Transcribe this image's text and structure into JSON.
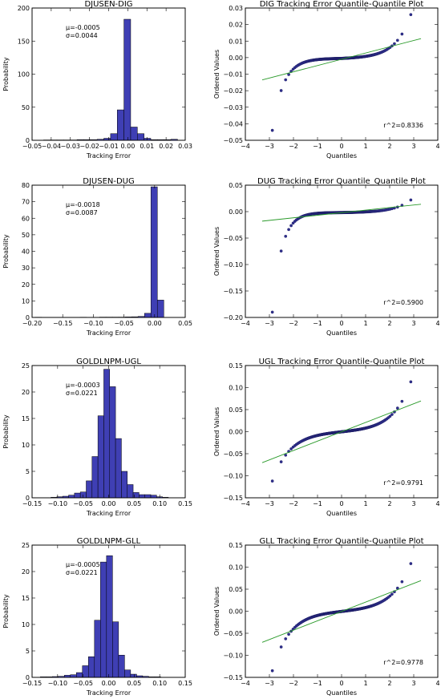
{
  "figure": {
    "background": "#ffffff",
    "bar_color": "#3f3fb4",
    "marker_color": "#2e2e8c",
    "fit_color": "#2a9a2a"
  },
  "chart_data": [
    {
      "type": "bar",
      "title": "DJUSEN-DIG",
      "xlabel": "Tracking Error",
      "ylabel": "Probability",
      "xlim": [
        -0.05,
        0.03
      ],
      "ylim": [
        0,
        200
      ],
      "xticks": [
        -0.05,
        -0.04,
        -0.03,
        -0.02,
        -0.01,
        0.0,
        0.01,
        0.02,
        0.03
      ],
      "xtick_labels": [
        "−0.05",
        "−0.04",
        "−0.03",
        "−0.02",
        "−0.01",
        "0.00",
        "0.01",
        "0.02",
        "0.03"
      ],
      "yticks": [
        0,
        50,
        100,
        150,
        200
      ],
      "ytick_labels": [
        "0",
        "50",
        "100",
        "150",
        "200"
      ],
      "annotation": [
        "μ=-0.0005",
        "σ=0.0044"
      ],
      "bins": [
        {
          "x0": -0.044,
          "x1": -0.0405,
          "y": 0.5
        },
        {
          "x0": -0.0405,
          "x1": -0.037,
          "y": 0.5
        },
        {
          "x0": -0.037,
          "x1": -0.0335,
          "y": 0.5
        },
        {
          "x0": -0.0335,
          "x1": -0.03,
          "y": 0.5
        },
        {
          "x0": -0.03,
          "x1": -0.0265,
          "y": 0.5
        },
        {
          "x0": -0.0265,
          "x1": -0.023,
          "y": 1
        },
        {
          "x0": -0.023,
          "x1": -0.0195,
          "y": 1
        },
        {
          "x0": -0.0195,
          "x1": -0.016,
          "y": 1
        },
        {
          "x0": -0.016,
          "x1": -0.0125,
          "y": 1.5
        },
        {
          "x0": -0.0125,
          "x1": -0.009,
          "y": 3
        },
        {
          "x0": -0.009,
          "x1": -0.0055,
          "y": 10
        },
        {
          "x0": -0.0055,
          "x1": -0.002,
          "y": 46
        },
        {
          "x0": -0.002,
          "x1": 0.0015,
          "y": 183
        },
        {
          "x0": 0.0015,
          "x1": 0.005,
          "y": 20
        },
        {
          "x0": 0.005,
          "x1": 0.0085,
          "y": 10
        },
        {
          "x0": 0.0085,
          "x1": 0.012,
          "y": 3
        },
        {
          "x0": 0.012,
          "x1": 0.0155,
          "y": 1
        },
        {
          "x0": 0.0155,
          "x1": 0.019,
          "y": 1
        },
        {
          "x0": 0.019,
          "x1": 0.0225,
          "y": 1
        },
        {
          "x0": 0.0225,
          "x1": 0.026,
          "y": 1.5
        }
      ]
    },
    {
      "type": "scatter",
      "title": "DIG Tracking Error Quantile-Quantile Plot",
      "xlabel": "Quantiles",
      "ylabel": "Ordered Values",
      "xlim": [
        -4,
        4
      ],
      "ylim": [
        -0.05,
        0.03
      ],
      "xticks": [
        -4,
        -3,
        -2,
        -1,
        0,
        1,
        2,
        3,
        4
      ],
      "xtick_labels": [
        "−4",
        "−3",
        "−2",
        "−1",
        "0",
        "1",
        "2",
        "3",
        "4"
      ],
      "yticks": [
        -0.05,
        -0.04,
        -0.03,
        -0.02,
        -0.01,
        0.0,
        0.01,
        0.02,
        0.03
      ],
      "ytick_labels": [
        "−0.05",
        "−0.04",
        "−0.03",
        "−0.02",
        "−0.01",
        "0.00",
        "0.01",
        "0.02",
        "0.03"
      ],
      "annotation": "r^2=0.8336",
      "qq": {
        "n": 250,
        "mu": -0.0005,
        "slope": 0.004,
        "min": -0.044,
        "max": 0.026,
        "tail_low": 2.2,
        "tail_high": 1.6
      },
      "fit": {
        "x": [
          -3.3,
          3.3
        ],
        "y": [
          -0.0135,
          0.0115
        ]
      }
    },
    {
      "type": "bar",
      "title": "DJUSEN-DUG",
      "xlabel": "Tracking Error",
      "ylabel": "Probability",
      "xlim": [
        -0.2,
        0.05
      ],
      "ylim": [
        0,
        80
      ],
      "xticks": [
        -0.2,
        -0.15,
        -0.1,
        -0.05,
        0.0,
        0.05
      ],
      "xtick_labels": [
        "−0.20",
        "−0.15",
        "−0.10",
        "−0.05",
        "0.00",
        "0.05"
      ],
      "yticks": [
        0,
        10,
        20,
        30,
        40,
        50,
        60,
        70,
        80
      ],
      "ytick_labels": [
        "0",
        "10",
        "20",
        "30",
        "40",
        "50",
        "60",
        "70",
        "80"
      ],
      "annotation": [
        "μ=-0.0018",
        "σ=0.0087"
      ],
      "bins": [
        {
          "x0": -0.195,
          "x1": -0.1845,
          "y": 0.15
        },
        {
          "x0": -0.1845,
          "x1": -0.174,
          "y": 0.1
        },
        {
          "x0": -0.174,
          "x1": -0.1635,
          "y": 0.1
        },
        {
          "x0": -0.1635,
          "x1": -0.153,
          "y": 0.1
        },
        {
          "x0": -0.153,
          "x1": -0.1425,
          "y": 0.1
        },
        {
          "x0": -0.1425,
          "x1": -0.132,
          "y": 0.1
        },
        {
          "x0": -0.132,
          "x1": -0.1215,
          "y": 0.1
        },
        {
          "x0": -0.1215,
          "x1": -0.111,
          "y": 0.15
        },
        {
          "x0": -0.111,
          "x1": -0.1005,
          "y": 0.1
        },
        {
          "x0": -0.1005,
          "x1": -0.09,
          "y": 0.1
        },
        {
          "x0": -0.09,
          "x1": -0.0795,
          "y": 0.2
        },
        {
          "x0": -0.0795,
          "x1": -0.069,
          "y": 0.2
        },
        {
          "x0": -0.069,
          "x1": -0.0585,
          "y": 0.2
        },
        {
          "x0": -0.0585,
          "x1": -0.048,
          "y": 0.2
        },
        {
          "x0": -0.048,
          "x1": -0.0375,
          "y": 0.3
        },
        {
          "x0": -0.0375,
          "x1": -0.027,
          "y": 0.4
        },
        {
          "x0": -0.027,
          "x1": -0.0165,
          "y": 0.6
        },
        {
          "x0": -0.0165,
          "x1": -0.006,
          "y": 2.5
        },
        {
          "x0": -0.006,
          "x1": 0.0045,
          "y": 79
        },
        {
          "x0": 0.0045,
          "x1": 0.015,
          "y": 10.5
        }
      ]
    },
    {
      "type": "scatter",
      "title": "DUG Tracking Error Quantile_Quantile Plot",
      "xlabel": "Quantiles",
      "ylabel": "Ordered Values",
      "xlim": [
        -4,
        4
      ],
      "ylim": [
        -0.2,
        0.05
      ],
      "xticks": [
        -4,
        -3,
        -2,
        -1,
        0,
        1,
        2,
        3,
        4
      ],
      "xtick_labels": [
        "−4",
        "−3",
        "−2",
        "−1",
        "0",
        "1",
        "2",
        "3",
        "4"
      ],
      "yticks": [
        -0.2,
        -0.15,
        -0.1,
        -0.05,
        0.0,
        0.05
      ],
      "ytick_labels": [
        "−0.20",
        "−0.15",
        "−0.10",
        "−0.05",
        "0.00",
        "0.05"
      ],
      "annotation": "r^2=0.5900",
      "qq": {
        "n": 250,
        "mu": -0.0018,
        "slope": 0.004,
        "min": -0.19,
        "max": 0.022,
        "tail_low": 2.6,
        "tail_high": 1.5
      },
      "fit": {
        "x": [
          -3.3,
          3.3
        ],
        "y": [
          -0.018,
          0.014
        ]
      }
    },
    {
      "type": "bar",
      "title": "GOLDLNPM-UGL",
      "xlabel": "Tracking Error",
      "ylabel": "Probability",
      "xlim": [
        -0.15,
        0.15
      ],
      "ylim": [
        0,
        25
      ],
      "xticks": [
        -0.15,
        -0.1,
        -0.05,
        0.0,
        0.05,
        0.1,
        0.15
      ],
      "xtick_labels": [
        "−0.15",
        "−0.10",
        "−0.05",
        "0.00",
        "0.05",
        "0.10",
        "0.15"
      ],
      "yticks": [
        0,
        5,
        10,
        15,
        20,
        25
      ],
      "ytick_labels": [
        "0",
        "5",
        "10",
        "15",
        "20",
        "25"
      ],
      "annotation": [
        "μ=-0.0003",
        "σ=0.0221"
      ],
      "bins": [
        {
          "x0": -0.113,
          "x1": -0.1015,
          "y": 0.1
        },
        {
          "x0": -0.1015,
          "x1": -0.09,
          "y": 0.2
        },
        {
          "x0": -0.09,
          "x1": -0.0785,
          "y": 0.3
        },
        {
          "x0": -0.0785,
          "x1": -0.067,
          "y": 0.5
        },
        {
          "x0": -0.067,
          "x1": -0.0555,
          "y": 0.9
        },
        {
          "x0": -0.0555,
          "x1": -0.044,
          "y": 1.1
        },
        {
          "x0": -0.044,
          "x1": -0.0325,
          "y": 3.2
        },
        {
          "x0": -0.0325,
          "x1": -0.021,
          "y": 7.8
        },
        {
          "x0": -0.021,
          "x1": -0.0095,
          "y": 15.5
        },
        {
          "x0": -0.0095,
          "x1": 0.002,
          "y": 24.3
        },
        {
          "x0": 0.002,
          "x1": 0.0135,
          "y": 21
        },
        {
          "x0": 0.0135,
          "x1": 0.025,
          "y": 11.2
        },
        {
          "x0": 0.025,
          "x1": 0.0365,
          "y": 5
        },
        {
          "x0": 0.0365,
          "x1": 0.048,
          "y": 2.5
        },
        {
          "x0": 0.048,
          "x1": 0.0595,
          "y": 1
        },
        {
          "x0": 0.0595,
          "x1": 0.071,
          "y": 0.6
        },
        {
          "x0": 0.071,
          "x1": 0.0825,
          "y": 0.6
        },
        {
          "x0": 0.0825,
          "x1": 0.094,
          "y": 0.5
        },
        {
          "x0": 0.094,
          "x1": 0.1055,
          "y": 0.2
        },
        {
          "x0": 0.1055,
          "x1": 0.117,
          "y": 0.1
        }
      ]
    },
    {
      "type": "scatter",
      "title": "UGL Tracking Error Quantile-Quantile Plot",
      "xlabel": "Quantiles",
      "ylabel": "Ordered Values",
      "xlim": [
        -4,
        4
      ],
      "ylim": [
        -0.15,
        0.15
      ],
      "xticks": [
        -4,
        -3,
        -2,
        -1,
        0,
        1,
        2,
        3,
        4
      ],
      "xtick_labels": [
        "−4",
        "−3",
        "−2",
        "−1",
        "0",
        "1",
        "2",
        "3",
        "4"
      ],
      "yticks": [
        -0.15,
        -0.1,
        -0.05,
        0.0,
        0.05,
        0.1,
        0.15
      ],
      "ytick_labels": [
        "−0.15",
        "−0.10",
        "−0.05",
        "0.00",
        "0.05",
        "0.10",
        "0.15"
      ],
      "annotation": "r^2=0.9791",
      "qq": {
        "n": 250,
        "mu": -0.0003,
        "slope": 0.019,
        "min": -0.112,
        "max": 0.113,
        "tail_low": 1.35,
        "tail_high": 1.35
      },
      "fit": {
        "x": [
          -3.3,
          3.3
        ],
        "y": [
          -0.0703,
          0.0697
        ]
      }
    },
    {
      "type": "bar",
      "title": "GOLDLNPM-GLL",
      "xlabel": "Tracking Error",
      "ylabel": "Probability",
      "xlim": [
        -0.15,
        0.15
      ],
      "ylim": [
        0,
        25
      ],
      "xticks": [
        -0.15,
        -0.1,
        -0.05,
        0.0,
        0.05,
        0.1,
        0.15
      ],
      "xtick_labels": [
        "−0.15",
        "−0.10",
        "−0.05",
        "0.00",
        "0.05",
        "0.10",
        "0.15"
      ],
      "yticks": [
        0,
        5,
        10,
        15,
        20,
        25
      ],
      "ytick_labels": [
        "0",
        "5",
        "10",
        "15",
        "20",
        "25"
      ],
      "annotation": [
        "μ=-0.0005",
        "σ=0.0221"
      ],
      "bins": [
        {
          "x0": -0.134,
          "x1": -0.1222,
          "y": 0.1
        },
        {
          "x0": -0.1222,
          "x1": -0.1104,
          "y": 0.1
        },
        {
          "x0": -0.1104,
          "x1": -0.0986,
          "y": 0.15
        },
        {
          "x0": -0.0986,
          "x1": -0.0868,
          "y": 0.2
        },
        {
          "x0": -0.0868,
          "x1": -0.075,
          "y": 0.4
        },
        {
          "x0": -0.075,
          "x1": -0.0632,
          "y": 0.5
        },
        {
          "x0": -0.0632,
          "x1": -0.0514,
          "y": 0.9
        },
        {
          "x0": -0.0514,
          "x1": -0.0396,
          "y": 2.2
        },
        {
          "x0": -0.0396,
          "x1": -0.0278,
          "y": 3.9
        },
        {
          "x0": -0.0278,
          "x1": -0.016,
          "y": 10.8
        },
        {
          "x0": -0.016,
          "x1": -0.0042,
          "y": 21.8
        },
        {
          "x0": -0.0042,
          "x1": 0.0076,
          "y": 23
        },
        {
          "x0": 0.0076,
          "x1": 0.0194,
          "y": 10.5
        },
        {
          "x0": 0.0194,
          "x1": 0.0312,
          "y": 4.2
        },
        {
          "x0": 0.0312,
          "x1": 0.043,
          "y": 1.4
        },
        {
          "x0": 0.043,
          "x1": 0.0548,
          "y": 0.6
        },
        {
          "x0": 0.0548,
          "x1": 0.0666,
          "y": 0.3
        },
        {
          "x0": 0.0666,
          "x1": 0.0784,
          "y": 0.2
        },
        {
          "x0": 0.0784,
          "x1": 0.0902,
          "y": 0.1
        },
        {
          "x0": 0.0902,
          "x1": 0.102,
          "y": 0.1
        }
      ]
    },
    {
      "type": "scatter",
      "title": "GLL Tracking Error Quantile-Quantile Plot",
      "xlabel": "Quantiles",
      "ylabel": "Ordered Values",
      "xlim": [
        -4,
        4
      ],
      "ylim": [
        -0.15,
        0.15
      ],
      "xticks": [
        -4,
        -3,
        -2,
        -1,
        0,
        1,
        2,
        3,
        4
      ],
      "xtick_labels": [
        "−4",
        "−3",
        "−2",
        "−1",
        "0",
        "1",
        "2",
        "3",
        "4"
      ],
      "yticks": [
        -0.15,
        -0.1,
        -0.05,
        0.0,
        0.05,
        0.1,
        0.15
      ],
      "ytick_labels": [
        "−0.15",
        "−0.10",
        "−0.05",
        "0.00",
        "0.05",
        "0.10",
        "0.15"
      ],
      "annotation": "r^2=0.9778",
      "qq": {
        "n": 250,
        "mu": -0.0005,
        "slope": 0.019,
        "min": -0.135,
        "max": 0.108,
        "tail_low": 1.4,
        "tail_high": 1.3
      },
      "fit": {
        "x": [
          -3.3,
          3.3
        ],
        "y": [
          -0.0705,
          0.0695
        ]
      }
    }
  ]
}
